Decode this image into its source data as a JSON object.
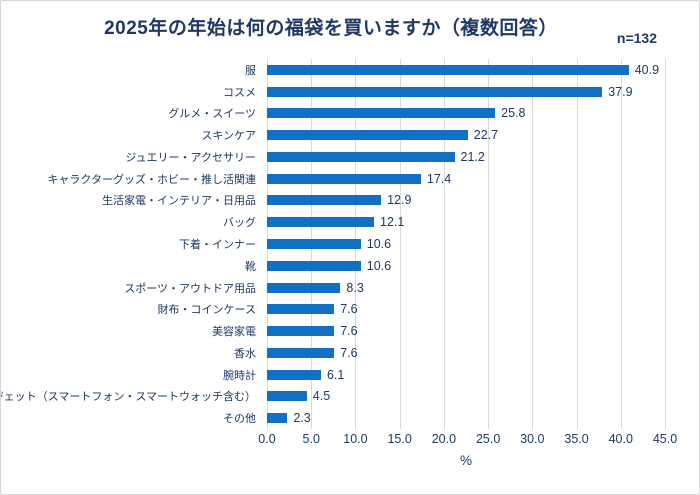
{
  "chart_data": {
    "type": "bar",
    "orientation": "horizontal",
    "title": "2025年の年始は何の福袋を買いますか（複数回答）",
    "note": "n=132",
    "categories": [
      "服",
      "コスメ",
      "グルメ・スイーツ",
      "スキンケア",
      "ジュエリー・アクセサリー",
      "キャラクターグッズ・ホビー・推し活関連",
      "生活家電・インテリア・日用品",
      "バッグ",
      "下着・インナー",
      "靴",
      "スポーツ・アウトドア用品",
      "財布・コインケース",
      "美容家電",
      "香水",
      "腕時計",
      "ガジェット（スマートフォン・スマートウォッチ含む）",
      "その他"
    ],
    "values": [
      40.9,
      37.9,
      25.8,
      22.7,
      21.2,
      17.4,
      12.9,
      12.1,
      10.6,
      10.6,
      8.3,
      7.6,
      7.6,
      7.6,
      6.1,
      4.5,
      2.3
    ],
    "xlabel": "%",
    "xlim": [
      0,
      45
    ],
    "xticks": [
      "0.0",
      "5.0",
      "10.0",
      "15.0",
      "20.0",
      "25.0",
      "30.0",
      "35.0",
      "40.0",
      "45.0"
    ],
    "grid": "vertical",
    "legend": "none",
    "colors": {
      "bar": "#1170c1",
      "text": "#1f3864",
      "gridline": "#d9d9d9",
      "border": "#d6d6d6"
    }
  }
}
